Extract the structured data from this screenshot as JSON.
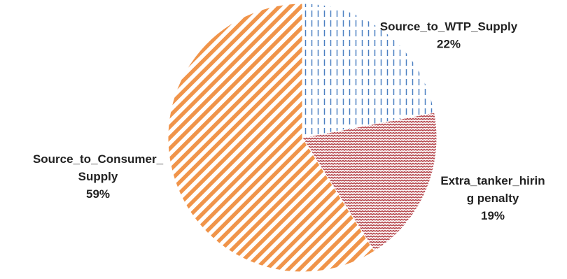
{
  "chart_data": {
    "type": "pie",
    "slices": [
      {
        "label_lines": [
          "Source_to_WTP_Supply"
        ],
        "percent_label": "22%",
        "value": 22,
        "color": "#4a7fc1",
        "pattern": "dashed-vertical"
      },
      {
        "label_lines": [
          "Extra_tanker_hirin",
          "g penalty"
        ],
        "percent_label": "19%",
        "value": 19,
        "color": "#b5474d",
        "pattern": "wave-horizontal"
      },
      {
        "label_lines": [
          "Source_to_Consumer_",
          "Supply"
        ],
        "percent_label": "59%",
        "value": 59,
        "color": "#f0944a",
        "pattern": "diagonal-stripes"
      }
    ],
    "start_angle_deg": 0,
    "direction": "clockwise"
  }
}
